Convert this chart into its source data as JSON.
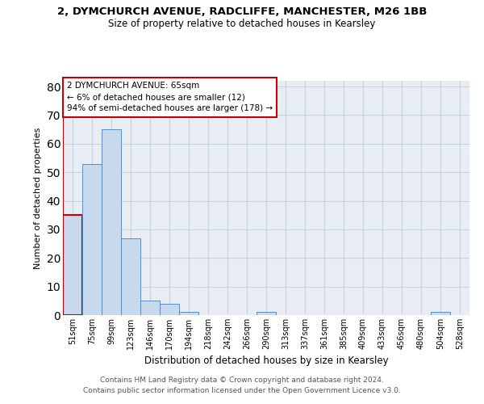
{
  "title_line1": "2, DYMCHURCH AVENUE, RADCLIFFE, MANCHESTER, M26 1BB",
  "title_line2": "Size of property relative to detached houses in Kearsley",
  "xlabel": "Distribution of detached houses by size in Kearsley",
  "ylabel": "Number of detached properties",
  "footer_line1": "Contains HM Land Registry data © Crown copyright and database right 2024.",
  "footer_line2": "Contains public sector information licensed under the Open Government Licence v3.0.",
  "annotation_title": "2 DYMCHURCH AVENUE: 65sqm",
  "annotation_line1": "← 6% of detached houses are smaller (12)",
  "annotation_line2": "94% of semi-detached houses are larger (178) →",
  "bar_color": "#c9d9ed",
  "bar_edge_color": "#5b8cc8",
  "highlight_bar_edge_color": "#cc0000",
  "highlight_index": 0,
  "categories": [
    "51sqm",
    "75sqm",
    "99sqm",
    "123sqm",
    "146sqm",
    "170sqm",
    "194sqm",
    "218sqm",
    "242sqm",
    "266sqm",
    "290sqm",
    "313sqm",
    "337sqm",
    "361sqm",
    "385sqm",
    "409sqm",
    "433sqm",
    "456sqm",
    "480sqm",
    "504sqm",
    "528sqm"
  ],
  "values": [
    35,
    53,
    65,
    27,
    5,
    4,
    1,
    0,
    0,
    0,
    1,
    0,
    0,
    0,
    0,
    0,
    0,
    0,
    0,
    1,
    0
  ],
  "ylim": [
    0,
    82
  ],
  "yticks": [
    0,
    10,
    20,
    30,
    40,
    50,
    60,
    70,
    80
  ],
  "grid_color": "#c8d0dd",
  "bg_color": "#e8edf4"
}
